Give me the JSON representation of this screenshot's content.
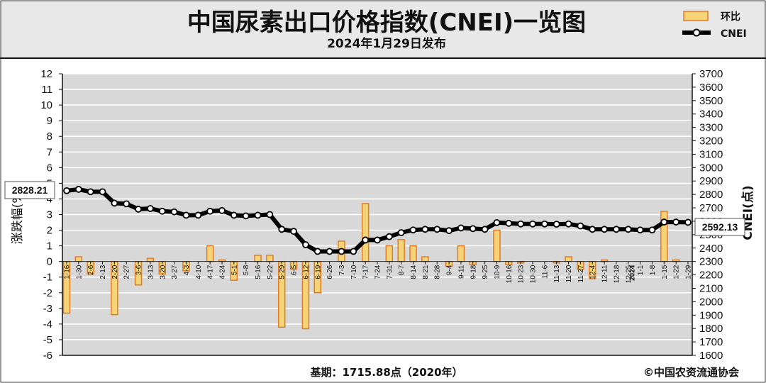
{
  "header": {
    "title": "中国尿素出口价格指数(CNEI)一览图",
    "subtitle": "2024年1月29日发布"
  },
  "footer": {
    "base": "基期：1715.88点（2020年）",
    "copyright": "©中国农资流通协会"
  },
  "colors": {
    "bar_fill": "#f5d478",
    "bar_stroke": "#e07b27",
    "line": "#000000",
    "marker_fill": "#ffffff",
    "plot_bg": "#d8d8d8",
    "grid": "#ffffff",
    "page_bg": "#e8e8e8"
  },
  "chart_data": {
    "type": "bar+line",
    "title": "中国尿素出口价格指数(CNEI)一览图",
    "subtitle": "2024年1月29日发布",
    "categories": [
      "1-16",
      "1-30",
      "2-6",
      "2-13",
      "2-20",
      "2-27",
      "3-6",
      "3-13",
      "3-20",
      "3-27",
      "4-3",
      "4-10",
      "4-17",
      "4-24",
      "5-1",
      "5-8",
      "5-16",
      "5-22",
      "5-29",
      "6-5",
      "6-12",
      "6-19",
      "6-26",
      "7-3",
      "7-10",
      "7-17",
      "7-24",
      "7-31",
      "8-7",
      "8-14",
      "8-21",
      "8-28",
      "9-4",
      "9-11",
      "9-18",
      "9-25",
      "10-9",
      "10-16",
      "10-23",
      "10-30",
      "11-6",
      "11-13",
      "11-20",
      "11-27",
      "12-4",
      "12-11",
      "12-18",
      "12-25",
      "1-1",
      "1-8",
      "1-15",
      "1-22",
      "1-29"
    ],
    "year_marker": "2024",
    "y_left_label": "涨跌幅(%)",
    "y_right_label": "CNEI(点)",
    "ylim_left": [
      -6,
      12
    ],
    "ylim_right": [
      1600,
      3700
    ],
    "left_ticks": [
      -6,
      -5,
      -4,
      -3,
      -2,
      -1,
      0,
      1,
      2,
      3,
      4,
      5,
      6,
      7,
      8,
      9,
      10,
      11,
      12
    ],
    "right_ticks": [
      1600,
      1700,
      1800,
      1900,
      2000,
      2100,
      2200,
      2300,
      2400,
      2500,
      2600,
      2700,
      2800,
      2900,
      3000,
      3100,
      3200,
      3300,
      3400,
      3500,
      3600,
      3700
    ],
    "series": [
      {
        "name": "环比",
        "type": "bar",
        "axis": "left",
        "values": [
          -3.3,
          0.3,
          -0.8,
          0,
          -3.4,
          0,
          -1.5,
          0.2,
          -0.8,
          0,
          -0.6,
          0,
          1.0,
          0.1,
          -1.2,
          0,
          0.4,
          0.4,
          -4.2,
          -0.5,
          -4.3,
          -2.0,
          0,
          1.3,
          0,
          3.7,
          0,
          1.0,
          1.4,
          1.0,
          0.3,
          0,
          -0.3,
          1.0,
          -0.2,
          0,
          2.0,
          -0.2,
          -0.1,
          0,
          0,
          -0.1,
          0.3,
          -0.5,
          -1.1,
          0.1,
          0,
          0,
          0,
          0,
          3.2,
          0.1,
          0
        ]
      },
      {
        "name": "CNEI",
        "type": "line",
        "axis": "right",
        "values": [
          2828,
          2838,
          2820,
          2820,
          2735,
          2730,
          2690,
          2695,
          2675,
          2670,
          2645,
          2645,
          2675,
          2680,
          2645,
          2640,
          2645,
          2650,
          2540,
          2525,
          2425,
          2375,
          2375,
          2375,
          2375,
          2460,
          2460,
          2485,
          2515,
          2535,
          2540,
          2540,
          2530,
          2550,
          2545,
          2540,
          2590,
          2585,
          2580,
          2580,
          2580,
          2578,
          2580,
          2565,
          2540,
          2540,
          2540,
          2540,
          2535,
          2535,
          2594,
          2594,
          2592.13
        ]
      }
    ],
    "annotations": {
      "first_value": "2828.21",
      "last_value": "2592.13"
    },
    "grid": true,
    "legend": "top-right"
  }
}
